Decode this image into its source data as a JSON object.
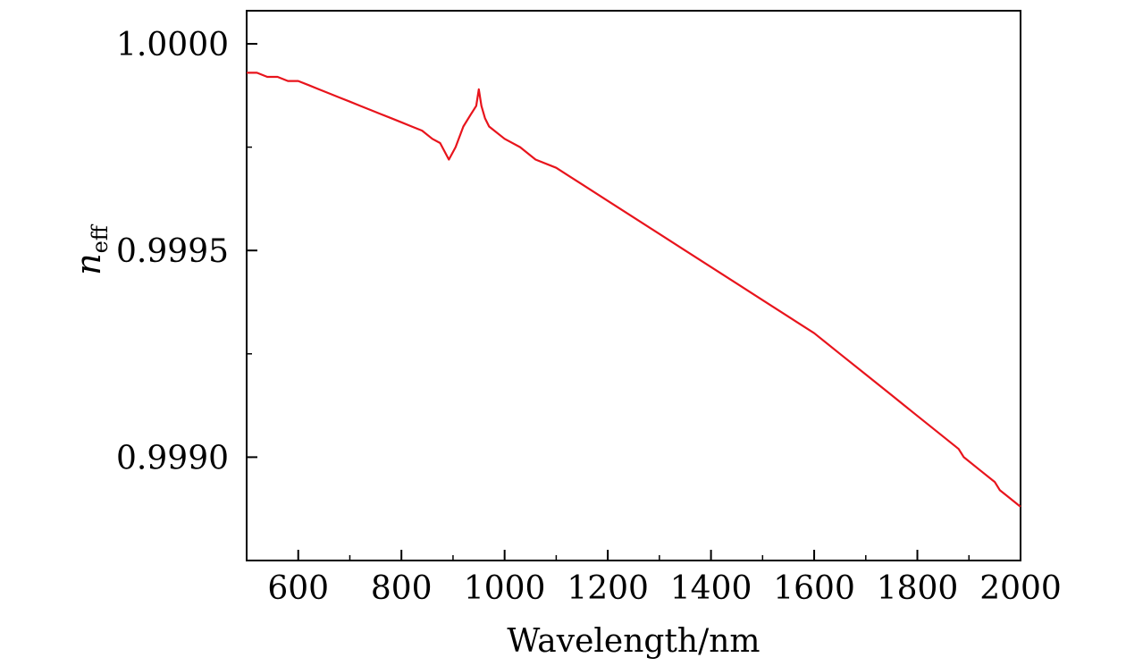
{
  "chart_data": {
    "type": "line",
    "xlabel": "Wavelength/nm",
    "ylabel": {
      "main": "n",
      "subscript": "eff"
    },
    "xlim": [
      500,
      2000
    ],
    "ylim": [
      0.99875,
      1.00008
    ],
    "x_ticks": [
      600,
      800,
      1000,
      1200,
      1400,
      1600,
      1800,
      2000
    ],
    "x_tick_labels": [
      "600",
      "800",
      "1000",
      "1200",
      "1400",
      "1600",
      "1800",
      "2000"
    ],
    "x_minor_step": 100,
    "y_ticks": [
      0.999,
      0.9995,
      1.0
    ],
    "y_tick_labels": [
      "0.9990",
      "0.9995",
      "1.0000"
    ],
    "y_minor_step": 0.00025,
    "grid": false,
    "legend": "none",
    "series": [
      {
        "color": "#e8141c",
        "x": [
          500,
          520,
          540,
          560,
          580,
          600,
          620,
          640,
          660,
          680,
          700,
          720,
          740,
          760,
          780,
          800,
          820,
          840,
          860,
          875,
          892,
          905,
          920,
          935,
          945,
          950,
          955,
          962,
          970,
          980,
          1000,
          1030,
          1060,
          1100,
          1150,
          1200,
          1250,
          1300,
          1350,
          1400,
          1450,
          1500,
          1550,
          1600,
          1650,
          1700,
          1750,
          1800,
          1850,
          1880,
          1890,
          1920,
          1950,
          1960,
          1980,
          2000
        ],
        "y": [
          0.99993,
          0.99993,
          0.99992,
          0.99992,
          0.99991,
          0.99991,
          0.9999,
          0.99989,
          0.99988,
          0.99987,
          0.99986,
          0.99985,
          0.99984,
          0.99983,
          0.99982,
          0.99981,
          0.9998,
          0.99979,
          0.99977,
          0.99976,
          0.99972,
          0.99975,
          0.9998,
          0.99983,
          0.99985,
          0.99989,
          0.99985,
          0.99982,
          0.9998,
          0.99979,
          0.99977,
          0.99975,
          0.99972,
          0.9997,
          0.99966,
          0.99962,
          0.99958,
          0.99954,
          0.9995,
          0.99946,
          0.99942,
          0.99938,
          0.99934,
          0.9993,
          0.99925,
          0.9992,
          0.99915,
          0.9991,
          0.99905,
          0.99902,
          0.999,
          0.99897,
          0.99894,
          0.99892,
          0.9989,
          0.99888
        ]
      }
    ]
  }
}
